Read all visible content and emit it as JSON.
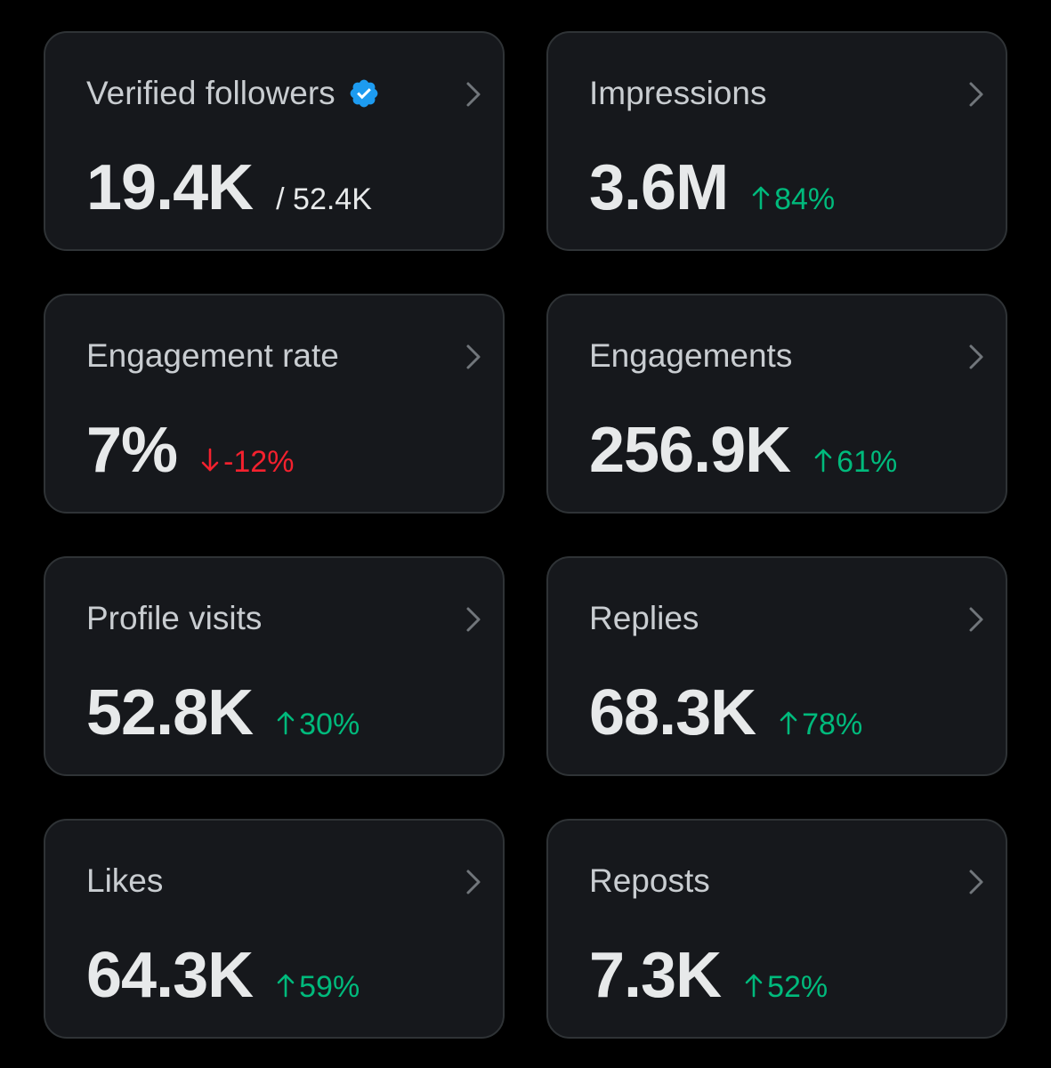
{
  "colors": {
    "background": "#000000",
    "card": "#16181c",
    "card_border": "#2f3336",
    "title": "#c9cdd1",
    "value": "#e7e9ea",
    "positive": "#00ba7c",
    "negative": "#f4212e",
    "verified": "#1d9bf0"
  },
  "cards": [
    {
      "title": "Verified followers",
      "value": "19.4K",
      "secondary": "/ 52.4K",
      "verified_icon": "verified-badge-icon"
    },
    {
      "title": "Impressions",
      "value": "3.6M",
      "delta": "84%",
      "trend": "up"
    },
    {
      "title": "Engagement rate",
      "value": "7%",
      "delta": "-12%",
      "trend": "down"
    },
    {
      "title": "Engagements",
      "value": "256.9K",
      "delta": "61%",
      "trend": "up"
    },
    {
      "title": "Profile visits",
      "value": "52.8K",
      "delta": "30%",
      "trend": "up"
    },
    {
      "title": "Replies",
      "value": "68.3K",
      "delta": "78%",
      "trend": "up"
    },
    {
      "title": "Likes",
      "value": "64.3K",
      "delta": "59%",
      "trend": "up"
    },
    {
      "title": "Reposts",
      "value": "7.3K",
      "delta": "52%",
      "trend": "up"
    }
  ]
}
